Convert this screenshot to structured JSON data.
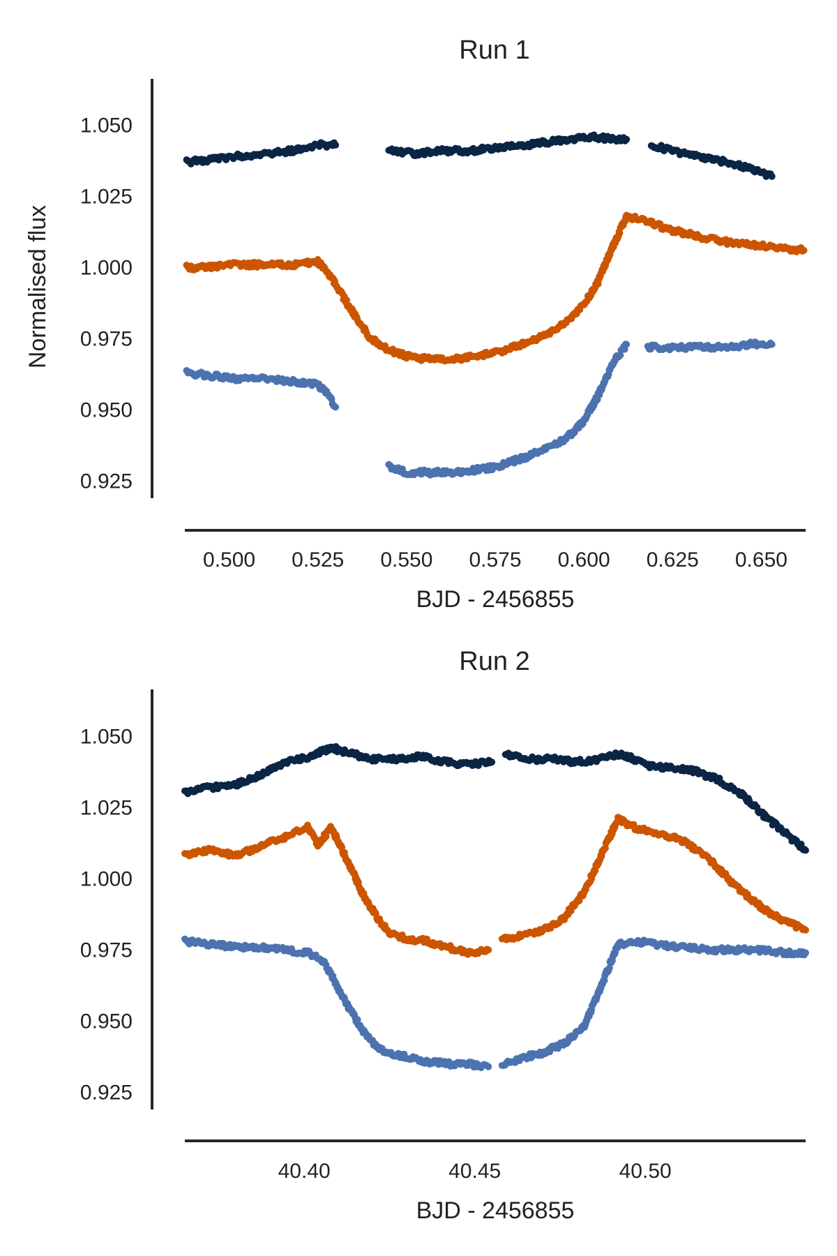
{
  "chart_data": [
    {
      "type": "scatter",
      "title": "Run 1",
      "xlabel": "BJD - 2456855",
      "ylabel": "Normalised flux",
      "xlim": [
        0.4875,
        0.6625
      ],
      "ylim": [
        0.9185,
        1.0665
      ],
      "xticks": [
        "0.500",
        "0.525",
        "0.550",
        "0.575",
        "0.600",
        "0.625",
        "0.650"
      ],
      "yticks": [
        "0.925",
        "0.950",
        "0.975",
        "1.000",
        "1.025",
        "1.050"
      ],
      "grid": false,
      "series": [
        {
          "name": "dark navy",
          "color": "#0b2545",
          "x": [
            0.488,
            0.495,
            0.502,
            0.51,
            0.518,
            0.525,
            0.53,
            0.545,
            0.553,
            0.56,
            0.568,
            0.575,
            0.583,
            0.59,
            0.596,
            0.602,
            0.608,
            0.612,
            0.619,
            0.625,
            0.632,
            0.64,
            0.647,
            0.653
          ],
          "y": [
            1.037,
            1.038,
            1.039,
            1.04,
            1.041,
            1.043,
            1.043,
            1.041,
            1.04,
            1.041,
            1.041,
            1.042,
            1.043,
            1.044,
            1.045,
            1.046,
            1.045,
            1.045,
            1.043,
            1.041,
            1.039,
            1.037,
            1.035,
            1.032
          ],
          "segments": [
            [
              0,
              6
            ],
            [
              7,
              17
            ],
            [
              18,
              23
            ]
          ]
        },
        {
          "name": "orange",
          "color": "#cc5500",
          "x": [
            0.488,
            0.495,
            0.502,
            0.51,
            0.518,
            0.525,
            0.528,
            0.532,
            0.536,
            0.54,
            0.545,
            0.55,
            0.555,
            0.56,
            0.565,
            0.57,
            0.575,
            0.58,
            0.585,
            0.59,
            0.595,
            0.6,
            0.604,
            0.608,
            0.612,
            0.618,
            0.625,
            0.632,
            0.64,
            0.648,
            0.655,
            0.662
          ],
          "y": [
            1.0,
            1.0,
            1.001,
            1.001,
            1.001,
            1.002,
            0.998,
            0.99,
            0.982,
            0.975,
            0.971,
            0.969,
            0.968,
            0.968,
            0.968,
            0.969,
            0.97,
            0.972,
            0.974,
            0.977,
            0.981,
            0.987,
            0.995,
            1.007,
            1.018,
            1.016,
            1.013,
            1.011,
            1.009,
            1.008,
            1.007,
            1.006
          ],
          "segments": [
            [
              0,
              31
            ]
          ]
        },
        {
          "name": "light blue",
          "color": "#4c72b0",
          "x": [
            0.488,
            0.495,
            0.502,
            0.51,
            0.518,
            0.525,
            0.528,
            0.53,
            0.545,
            0.55,
            0.555,
            0.56,
            0.565,
            0.57,
            0.575,
            0.58,
            0.585,
            0.59,
            0.595,
            0.6,
            0.604,
            0.608,
            0.612,
            0.618,
            0.625,
            0.632,
            0.64,
            0.647,
            0.653
          ],
          "y": [
            0.963,
            0.962,
            0.961,
            0.961,
            0.96,
            0.959,
            0.955,
            0.951,
            0.93,
            0.928,
            0.928,
            0.928,
            0.928,
            0.929,
            0.93,
            0.932,
            0.934,
            0.937,
            0.94,
            0.946,
            0.955,
            0.966,
            0.973,
            0.972,
            0.972,
            0.972,
            0.972,
            0.973,
            0.973
          ],
          "segments": [
            [
              0,
              7
            ],
            [
              8,
              22
            ],
            [
              23,
              28
            ]
          ]
        }
      ]
    },
    {
      "type": "scatter",
      "title": "Run 2",
      "xlabel": "BJD - 2456855",
      "ylabel": "",
      "xlim": [
        40.365,
        40.547
      ],
      "ylim": [
        0.9185,
        1.0665
      ],
      "xticks": [
        "40.40",
        "40.45",
        "40.50"
      ],
      "yticks": [
        "0.925",
        "0.950",
        "0.975",
        "1.000",
        "1.025",
        "1.050"
      ],
      "grid": false,
      "series": [
        {
          "name": "dark navy",
          "color": "#0b2545",
          "x": [
            40.365,
            40.372,
            40.38,
            40.388,
            40.395,
            40.402,
            40.408,
            40.414,
            40.42,
            40.427,
            40.434,
            40.441,
            40.448,
            40.455,
            40.459,
            40.466,
            40.473,
            40.48,
            40.487,
            40.493,
            40.5,
            40.507,
            40.514,
            40.521,
            40.528,
            40.535,
            40.541,
            40.547
          ],
          "y": [
            1.03,
            1.032,
            1.033,
            1.037,
            1.041,
            1.043,
            1.046,
            1.044,
            1.042,
            1.042,
            1.043,
            1.041,
            1.04,
            1.041,
            1.044,
            1.042,
            1.042,
            1.041,
            1.042,
            1.044,
            1.04,
            1.039,
            1.038,
            1.035,
            1.03,
            1.022,
            1.016,
            1.01
          ],
          "segments": [
            [
              0,
              13
            ],
            [
              14,
              27
            ]
          ]
        },
        {
          "name": "orange",
          "color": "#cc5500",
          "x": [
            40.365,
            40.372,
            40.38,
            40.388,
            40.395,
            40.401,
            40.404,
            40.408,
            40.412,
            40.417,
            40.421,
            40.425,
            40.43,
            40.436,
            40.442,
            40.448,
            40.454,
            40.458,
            40.464,
            40.47,
            40.476,
            40.482,
            40.487,
            40.492,
            40.497,
            40.503,
            40.51,
            40.518,
            40.526,
            40.534,
            40.541,
            40.547
          ],
          "y": [
            1.008,
            1.01,
            1.008,
            1.012,
            1.015,
            1.018,
            1.012,
            1.018,
            1.008,
            0.995,
            0.987,
            0.981,
            0.979,
            0.978,
            0.976,
            0.974,
            0.975,
            0.979,
            0.98,
            0.982,
            0.986,
            0.995,
            1.008,
            1.021,
            1.018,
            1.016,
            1.014,
            1.008,
            0.998,
            0.99,
            0.985,
            0.982
          ],
          "segments": [
            [
              0,
              16
            ],
            [
              17,
              31
            ]
          ]
        },
        {
          "name": "light blue",
          "color": "#4c72b0",
          "x": [
            40.365,
            40.372,
            40.38,
            40.388,
            40.395,
            40.401,
            40.405,
            40.408,
            40.412,
            40.417,
            40.422,
            40.428,
            40.435,
            40.442,
            40.448,
            40.454,
            40.458,
            40.464,
            40.47,
            40.476,
            40.482,
            40.487,
            40.492,
            40.497,
            40.503,
            40.51,
            40.518,
            40.526,
            40.534,
            40.541,
            40.547
          ],
          "y": [
            0.978,
            0.977,
            0.976,
            0.976,
            0.975,
            0.974,
            0.972,
            0.966,
            0.957,
            0.947,
            0.94,
            0.938,
            0.936,
            0.935,
            0.935,
            0.934,
            0.935,
            0.937,
            0.939,
            0.942,
            0.948,
            0.962,
            0.977,
            0.978,
            0.977,
            0.976,
            0.975,
            0.975,
            0.975,
            0.974,
            0.974
          ],
          "segments": [
            [
              0,
              15
            ],
            [
              16,
              30
            ]
          ]
        }
      ]
    }
  ]
}
